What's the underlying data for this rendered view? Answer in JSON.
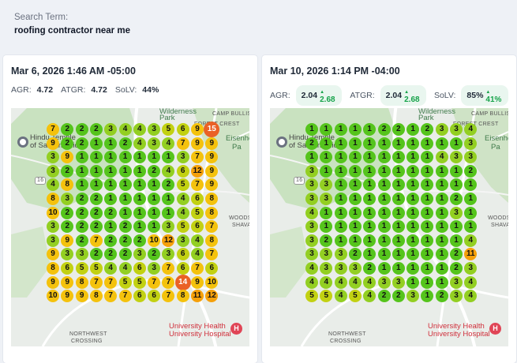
{
  "search": {
    "label": "Search Term:",
    "term": "roofing contractor near me"
  },
  "map_labels": {
    "wilderness": "Wilderness",
    "park": "Park",
    "camp_bullis": "CAMP BULLIS",
    "forest_crest": "FOREST CREST",
    "eisenhower_1": "Eisenho",
    "eisenhower_2": "Pa",
    "hindu_1": "Hindu Temple",
    "hindu_2": "of San Antonio",
    "woods_1": "WOODS O",
    "woods_2": "SHAVAN",
    "hospital_1": "University Health",
    "hospital_2": "University Hospital",
    "northwest_1": "NORTHWEST",
    "northwest_2": "CROSSING",
    "route": "16",
    "hosp_icon": "H"
  },
  "colors": {
    "green": "#55c41c",
    "lightgreen": "#93cf22",
    "yellowgreen": "#c2d112",
    "yellow": "#f4c20d",
    "orange": "#f5a00a",
    "red": "#ea6126",
    "pill_bg": "#e9f6ef",
    "up": "#16a34a"
  },
  "scans": [
    {
      "date": "Mar 6, 2026 1:46 AM -05:00",
      "agr_label": "AGR:",
      "agr": "4.72",
      "atgr_label": "ATGR:",
      "atgr": "4.72",
      "solv_label": "SoLV:",
      "solv": "44%",
      "grid": [
        [
          7,
          2,
          2,
          2,
          3,
          4,
          4,
          3,
          5,
          6,
          9,
          15
        ],
        [
          9,
          2,
          2,
          1,
          1,
          2,
          4,
          3,
          4,
          7,
          9,
          9
        ],
        [
          3,
          9,
          1,
          1,
          1,
          1,
          1,
          1,
          1,
          3,
          7,
          9
        ],
        [
          3,
          2,
          1,
          1,
          1,
          1,
          1,
          2,
          4,
          6,
          12,
          9
        ],
        [
          4,
          8,
          1,
          1,
          1,
          1,
          1,
          1,
          2,
          5,
          7,
          9
        ],
        [
          8,
          3,
          2,
          2,
          1,
          1,
          1,
          1,
          1,
          4,
          6,
          8
        ],
        [
          10,
          2,
          2,
          2,
          2,
          1,
          1,
          1,
          1,
          4,
          5,
          8
        ],
        [
          3,
          2,
          2,
          2,
          1,
          2,
          1,
          1,
          3,
          5,
          6,
          7
        ],
        [
          3,
          9,
          2,
          7,
          2,
          2,
          2,
          10,
          12,
          3,
          4,
          8
        ],
        [
          9,
          3,
          3,
          2,
          2,
          2,
          3,
          2,
          3,
          6,
          4,
          7
        ],
        [
          8,
          6,
          5,
          5,
          4,
          4,
          6,
          3,
          7,
          6,
          7,
          6
        ],
        [
          9,
          9,
          8,
          7,
          7,
          5,
          5,
          7,
          7,
          14,
          9,
          10
        ],
        [
          10,
          9,
          9,
          8,
          7,
          7,
          6,
          6,
          7,
          8,
          11,
          12
        ]
      ]
    },
    {
      "date": "Mar 10, 2026 1:14 PM -04:00",
      "agr_label": "AGR:",
      "agr": "2.04",
      "agr_change": "2.68",
      "atgr_label": "ATGR:",
      "atgr": "2.04",
      "atgr_change": "2.68",
      "solv_label": "SoLV:",
      "solv": "85%",
      "solv_change": "41%",
      "up_icon": "▲",
      "grid": [
        [
          1,
          1,
          1,
          1,
          1,
          2,
          2,
          1,
          2,
          3,
          3,
          4
        ],
        [
          2,
          1,
          1,
          1,
          1,
          1,
          1,
          1,
          1,
          1,
          1,
          3
        ],
        [
          1,
          1,
          1,
          1,
          1,
          1,
          1,
          1,
          1,
          4,
          3,
          3
        ],
        [
          3,
          1,
          1,
          1,
          1,
          1,
          1,
          1,
          1,
          1,
          1,
          2
        ],
        [
          3,
          3,
          1,
          1,
          1,
          1,
          1,
          1,
          1,
          1,
          1,
          1
        ],
        [
          3,
          3,
          1,
          1,
          1,
          1,
          1,
          1,
          1,
          1,
          2,
          1
        ],
        [
          4,
          1,
          1,
          1,
          1,
          1,
          1,
          1,
          1,
          1,
          3,
          1
        ],
        [
          3,
          1,
          1,
          1,
          1,
          1,
          1,
          1,
          1,
          1,
          1,
          1
        ],
        [
          3,
          2,
          1,
          1,
          1,
          1,
          1,
          1,
          1,
          1,
          1,
          4
        ],
        [
          3,
          3,
          3,
          2,
          1,
          1,
          1,
          1,
          1,
          1,
          2,
          11
        ],
        [
          4,
          3,
          3,
          3,
          2,
          1,
          1,
          1,
          1,
          1,
          2,
          3
        ],
        [
          4,
          4,
          4,
          4,
          4,
          3,
          3,
          1,
          1,
          1,
          3,
          4
        ],
        [
          5,
          5,
          4,
          5,
          4,
          2,
          2,
          3,
          1,
          2,
          3,
          4
        ]
      ]
    }
  ]
}
